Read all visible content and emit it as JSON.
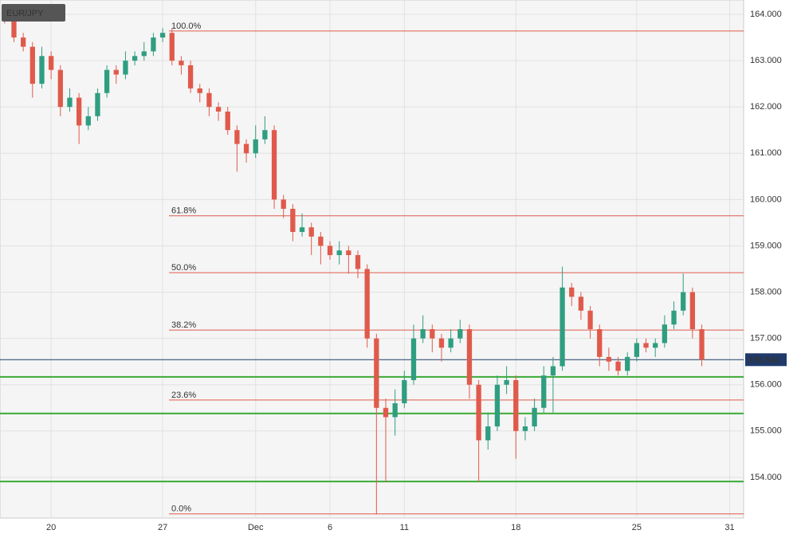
{
  "chart_data": {
    "type": "candlestick",
    "title": "EUR/JPY",
    "categories": [
      null,
      null,
      null,
      null,
      null,
      "20",
      null,
      null,
      null,
      null,
      null,
      null,
      null,
      null,
      null,
      null,
      null,
      "27",
      null,
      null,
      null,
      null,
      null,
      null,
      null,
      null,
      null,
      "Dec",
      null,
      null,
      null,
      null,
      null,
      null,
      null,
      "6",
      null,
      null,
      null,
      null,
      null,
      null,
      null,
      "11",
      null,
      null,
      null,
      null,
      null,
      null,
      null,
      null,
      null,
      null,
      null,
      "18",
      null,
      null,
      null,
      null,
      null,
      null,
      null,
      null,
      null,
      null,
      null,
      null,
      "25",
      null,
      null,
      null,
      null,
      null,
      null,
      null,
      null,
      null,
      "31",
      null
    ],
    "open": [
      164.1,
      163.9,
      163.5,
      163.3,
      162.5,
      163.1,
      162.8,
      162.0,
      162.2,
      161.6,
      161.8,
      162.3,
      162.8,
      162.7,
      163.0,
      163.1,
      163.2,
      163.5,
      163.6,
      163.0,
      162.9,
      162.4,
      162.3,
      162.0,
      161.9,
      161.5,
      161.2,
      161.0,
      161.3,
      161.5,
      160.0,
      159.8,
      159.3,
      159.4,
      159.2,
      159.0,
      158.8,
      158.9,
      158.8,
      158.5,
      157.0,
      155.5,
      155.3,
      155.6,
      156.1,
      157.0,
      157.2,
      157.0,
      156.8,
      157.0,
      157.2,
      156.0,
      154.8,
      155.1,
      156.0,
      156.1,
      155.0,
      155.1,
      155.5,
      156.2,
      156.4,
      158.1,
      157.9,
      157.6,
      157.2,
      156.6,
      156.5,
      156.3,
      156.6,
      156.9,
      156.8,
      156.9,
      157.3,
      157.6,
      158.0,
      157.2,
      null,
      null,
      null,
      null
    ],
    "high": [
      164.2,
      164.0,
      163.6,
      163.4,
      163.3,
      163.2,
      162.9,
      162.4,
      162.3,
      162.0,
      162.4,
      162.9,
      162.9,
      163.2,
      163.2,
      163.4,
      163.6,
      163.7,
      163.7,
      163.1,
      163.0,
      162.5,
      162.4,
      162.1,
      162.0,
      161.6,
      161.3,
      161.6,
      161.8,
      161.6,
      160.1,
      159.9,
      159.7,
      159.5,
      159.3,
      159.1,
      159.1,
      159.0,
      158.9,
      158.6,
      157.1,
      155.7,
      155.9,
      156.3,
      157.3,
      157.5,
      157.3,
      157.1,
      157.2,
      157.4,
      157.3,
      156.1,
      155.4,
      156.2,
      156.4,
      156.2,
      155.3,
      155.7,
      156.4,
      156.6,
      158.55,
      158.2,
      158.0,
      157.7,
      157.3,
      156.8,
      156.6,
      156.7,
      157.0,
      157.0,
      157.0,
      157.5,
      157.8,
      158.4,
      158.1,
      157.3,
      null,
      null,
      null,
      null
    ],
    "low": [
      163.8,
      163.4,
      163.2,
      162.2,
      162.4,
      162.6,
      161.8,
      161.9,
      161.2,
      161.5,
      161.7,
      162.2,
      162.5,
      162.6,
      162.9,
      163.0,
      163.1,
      163.4,
      162.9,
      162.7,
      162.3,
      162.1,
      161.8,
      161.7,
      161.4,
      160.6,
      160.8,
      160.9,
      161.2,
      159.8,
      159.6,
      159.1,
      159.2,
      158.8,
      158.6,
      158.7,
      158.6,
      158.4,
      158.3,
      156.8,
      153.2,
      153.9,
      154.9,
      155.5,
      156.0,
      156.9,
      156.7,
      156.5,
      156.7,
      156.9,
      155.7,
      153.9,
      154.6,
      155.0,
      155.8,
      154.4,
      154.8,
      155.0,
      155.4,
      155.4,
      156.3,
      157.7,
      157.4,
      157.0,
      156.4,
      156.3,
      156.2,
      156.2,
      156.5,
      156.7,
      156.6,
      156.8,
      157.2,
      157.5,
      157.0,
      156.4,
      null,
      null,
      null,
      null
    ],
    "close": [
      163.9,
      163.5,
      163.3,
      162.5,
      163.1,
      162.8,
      162.0,
      162.2,
      161.6,
      161.8,
      162.3,
      162.8,
      162.7,
      163.0,
      163.1,
      163.2,
      163.5,
      163.6,
      163.0,
      162.9,
      162.4,
      162.3,
      162.0,
      161.9,
      161.5,
      161.2,
      161.0,
      161.3,
      161.5,
      160.0,
      159.8,
      159.3,
      159.4,
      159.2,
      159.0,
      158.8,
      158.9,
      158.8,
      158.5,
      157.0,
      155.5,
      155.3,
      155.6,
      156.1,
      157.0,
      157.2,
      157.0,
      156.8,
      157.0,
      157.2,
      156.0,
      154.8,
      155.1,
      156.0,
      156.1,
      155.0,
      155.1,
      155.5,
      156.2,
      156.4,
      158.1,
      157.9,
      157.6,
      157.2,
      156.6,
      156.5,
      156.3,
      156.6,
      156.9,
      156.8,
      156.9,
      157.3,
      157.6,
      158.0,
      157.2,
      156.541,
      null,
      null,
      null,
      null
    ],
    "up_color": "#2f9e80",
    "down_color": "#e05a4b",
    "ylim": [
      153.12,
      164.31
    ],
    "yticks": [
      {
        "value": 154,
        "label": "154.000"
      },
      {
        "value": 155,
        "label": "155.000"
      },
      {
        "value": 156,
        "label": "156.000"
      },
      {
        "value": 157,
        "label": "157.000"
      },
      {
        "value": 158,
        "label": "158.000"
      },
      {
        "value": 159,
        "label": "159.000"
      },
      {
        "value": 160,
        "label": "160.000"
      },
      {
        "value": 161,
        "label": "161.000"
      },
      {
        "value": 162,
        "label": "162.000"
      },
      {
        "value": 163,
        "label": "163.000"
      },
      {
        "value": 164,
        "label": "164.000"
      }
    ],
    "grid": true,
    "fib_levels": [
      {
        "label": "100.0%",
        "value": 163.64
      },
      {
        "label": "61.8%",
        "value": 159.65
      },
      {
        "label": "50.0%",
        "value": 158.42
      },
      {
        "label": "38.2%",
        "value": 157.18
      },
      {
        "label": "23.6%",
        "value": 155.67
      },
      {
        "label": "0.0%",
        "value": 153.21
      }
    ],
    "fib_color": "#e05a4b",
    "support_lines": [
      156.17,
      155.38,
      153.91
    ],
    "support_color": "#3aaa35",
    "last_price": 156.541,
    "last_price_color": "#1f3a6b"
  }
}
